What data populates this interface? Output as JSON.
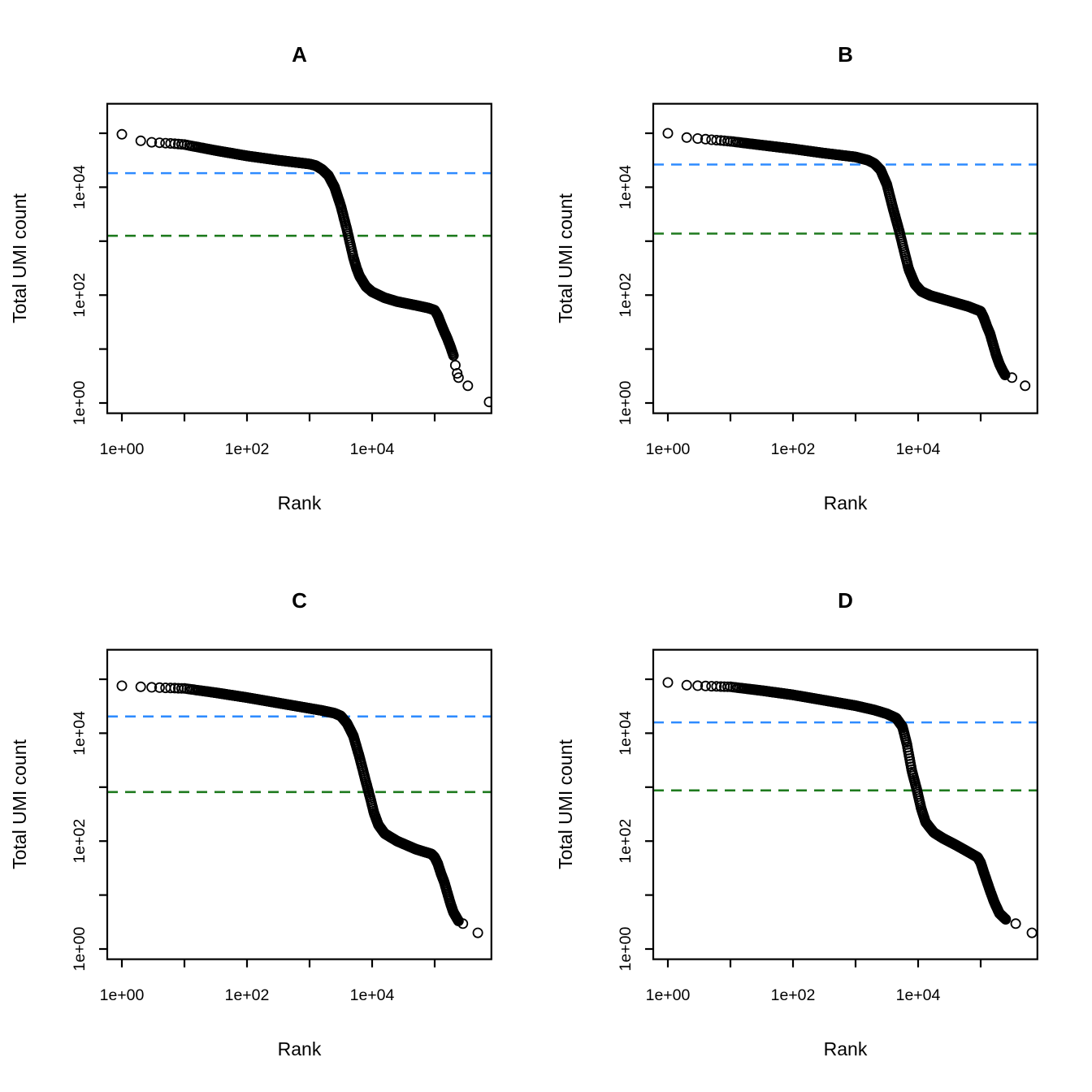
{
  "figure": {
    "background_color": "#ffffff",
    "description": "Four barcode-rank (knee) plots of total UMI count versus barcode rank on log-log axes, with dashed knee and inflection threshold lines"
  },
  "chart_data": {
    "type": "scatter",
    "shared": {
      "xlabel": "Rank",
      "ylabel": "Total UMI count",
      "x_tick_labels": [
        "1e+00",
        "1e+02",
        "1e+04"
      ],
      "y_tick_labels": [
        "1e+00",
        "1e+02",
        "1e+04"
      ],
      "x_ticks_log10": [
        0,
        1,
        2,
        3,
        4,
        5
      ],
      "y_ticks_log10": [
        0,
        1,
        2,
        3,
        4,
        5
      ],
      "xlim_log10": [
        -0.23,
        5.9
      ],
      "ylim_log10": [
        -0.19,
        5.55
      ],
      "grid": false,
      "legend": "none",
      "point_color": "#000000",
      "point_fill": "none",
      "knee_line_color": "#2E8BFF",
      "inflection_line_color": "#1E7A1E",
      "line_style": "dashed"
    },
    "panels": [
      {
        "title": "A",
        "knee_log10": 4.26,
        "knee_value": 18000,
        "inflection_log10": 3.1,
        "inflection_value": 1250,
        "max_rank_log10": 5.87,
        "sample_cut_log10": 5.3,
        "curve_log10": [
          [
            0,
            4.98
          ],
          [
            0.1,
            4.9
          ],
          [
            0.2,
            4.87
          ],
          [
            0.3,
            4.86
          ],
          [
            0.5,
            4.83
          ],
          [
            0.8,
            4.81
          ],
          [
            1,
            4.79
          ],
          [
            1.5,
            4.68
          ],
          [
            2,
            4.58
          ],
          [
            2.5,
            4.5
          ],
          [
            3,
            4.43
          ],
          [
            3.1,
            4.4
          ],
          [
            3.2,
            4.33
          ],
          [
            3.3,
            4.22
          ],
          [
            3.4,
            4.0
          ],
          [
            3.5,
            3.65
          ],
          [
            3.6,
            3.2
          ],
          [
            3.65,
            2.95
          ],
          [
            3.7,
            2.7
          ],
          [
            3.75,
            2.5
          ],
          [
            3.8,
            2.35
          ],
          [
            3.9,
            2.16
          ],
          [
            4.0,
            2.06
          ],
          [
            4.2,
            1.95
          ],
          [
            4.4,
            1.88
          ],
          [
            4.7,
            1.81
          ],
          [
            4.9,
            1.76
          ],
          [
            5.0,
            1.72
          ],
          [
            5.05,
            1.62
          ],
          [
            5.1,
            1.47
          ],
          [
            5.15,
            1.33
          ],
          [
            5.2,
            1.2
          ],
          [
            5.25,
            1.05
          ],
          [
            5.3,
            0.88
          ]
        ],
        "tail_log10": [
          [
            5.33,
            0.7
          ],
          [
            5.36,
            0.55
          ],
          [
            5.38,
            0.47
          ],
          [
            5.53,
            0.32
          ],
          [
            5.87,
            0.02
          ]
        ]
      },
      {
        "title": "B",
        "knee_log10": 4.42,
        "knee_value": 26000,
        "inflection_log10": 3.14,
        "inflection_value": 1400,
        "max_rank_log10": 5.71,
        "sample_cut_log10": 5.39,
        "curve_log10": [
          [
            0,
            5.0
          ],
          [
            0.1,
            4.94
          ],
          [
            0.3,
            4.92
          ],
          [
            0.5,
            4.9
          ],
          [
            1,
            4.85
          ],
          [
            1.5,
            4.78
          ],
          [
            2,
            4.71
          ],
          [
            2.5,
            4.63
          ],
          [
            3,
            4.56
          ],
          [
            3.2,
            4.5
          ],
          [
            3.3,
            4.44
          ],
          [
            3.4,
            4.32
          ],
          [
            3.5,
            4.05
          ],
          [
            3.6,
            3.6
          ],
          [
            3.7,
            3.18
          ],
          [
            3.78,
            2.8
          ],
          [
            3.85,
            2.48
          ],
          [
            3.95,
            2.2
          ],
          [
            4.05,
            2.07
          ],
          [
            4.2,
            1.99
          ],
          [
            4.5,
            1.89
          ],
          [
            4.8,
            1.79
          ],
          [
            5.0,
            1.7
          ],
          [
            5.05,
            1.58
          ],
          [
            5.1,
            1.42
          ],
          [
            5.15,
            1.28
          ],
          [
            5.2,
            1.08
          ],
          [
            5.25,
            0.88
          ],
          [
            5.3,
            0.72
          ],
          [
            5.35,
            0.6
          ],
          [
            5.39,
            0.52
          ]
        ],
        "tail_log10": [
          [
            5.5,
            0.47
          ],
          [
            5.71,
            0.32
          ]
        ]
      },
      {
        "title": "C",
        "knee_log10": 4.31,
        "knee_value": 20000,
        "inflection_log10": 2.91,
        "inflection_value": 800,
        "max_rank_log10": 5.69,
        "sample_cut_log10": 5.38,
        "curve_log10": [
          [
            0,
            4.88
          ],
          [
            0.3,
            4.86
          ],
          [
            0.7,
            4.84
          ],
          [
            1,
            4.83
          ],
          [
            1.5,
            4.75
          ],
          [
            2,
            4.66
          ],
          [
            2.5,
            4.56
          ],
          [
            3,
            4.46
          ],
          [
            3.2,
            4.42
          ],
          [
            3.4,
            4.37
          ],
          [
            3.5,
            4.32
          ],
          [
            3.6,
            4.18
          ],
          [
            3.7,
            3.95
          ],
          [
            3.8,
            3.55
          ],
          [
            3.9,
            3.1
          ],
          [
            3.97,
            2.8
          ],
          [
            4.03,
            2.52
          ],
          [
            4.1,
            2.3
          ],
          [
            4.2,
            2.14
          ],
          [
            4.4,
            2.0
          ],
          [
            4.7,
            1.85
          ],
          [
            4.95,
            1.76
          ],
          [
            5.0,
            1.7
          ],
          [
            5.05,
            1.58
          ],
          [
            5.1,
            1.4
          ],
          [
            5.15,
            1.25
          ],
          [
            5.2,
            1.05
          ],
          [
            5.25,
            0.85
          ],
          [
            5.3,
            0.68
          ],
          [
            5.35,
            0.58
          ],
          [
            5.38,
            0.52
          ]
        ],
        "tail_log10": [
          [
            5.45,
            0.47
          ],
          [
            5.69,
            0.3
          ]
        ]
      },
      {
        "title": "D",
        "knee_log10": 4.2,
        "knee_value": 16000,
        "inflection_log10": 2.94,
        "inflection_value": 870,
        "max_rank_log10": 5.82,
        "sample_cut_log10": 5.4,
        "curve_log10": [
          [
            0,
            4.94
          ],
          [
            0.3,
            4.89
          ],
          [
            0.7,
            4.87
          ],
          [
            1,
            4.86
          ],
          [
            1.5,
            4.79
          ],
          [
            2,
            4.71
          ],
          [
            2.5,
            4.61
          ],
          [
            3,
            4.51
          ],
          [
            3.3,
            4.43
          ],
          [
            3.5,
            4.36
          ],
          [
            3.65,
            4.28
          ],
          [
            3.75,
            4.12
          ],
          [
            3.82,
            3.8
          ],
          [
            3.9,
            3.3
          ],
          [
            3.98,
            2.95
          ],
          [
            4.05,
            2.6
          ],
          [
            4.12,
            2.35
          ],
          [
            4.25,
            2.16
          ],
          [
            4.4,
            2.05
          ],
          [
            4.6,
            1.93
          ],
          [
            4.8,
            1.8
          ],
          [
            4.95,
            1.7
          ],
          [
            5.0,
            1.6
          ],
          [
            5.05,
            1.42
          ],
          [
            5.1,
            1.25
          ],
          [
            5.15,
            1.08
          ],
          [
            5.22,
            0.86
          ],
          [
            5.3,
            0.66
          ],
          [
            5.4,
            0.55
          ]
        ],
        "tail_log10": [
          [
            5.56,
            0.47
          ],
          [
            5.82,
            0.3
          ]
        ]
      }
    ]
  }
}
